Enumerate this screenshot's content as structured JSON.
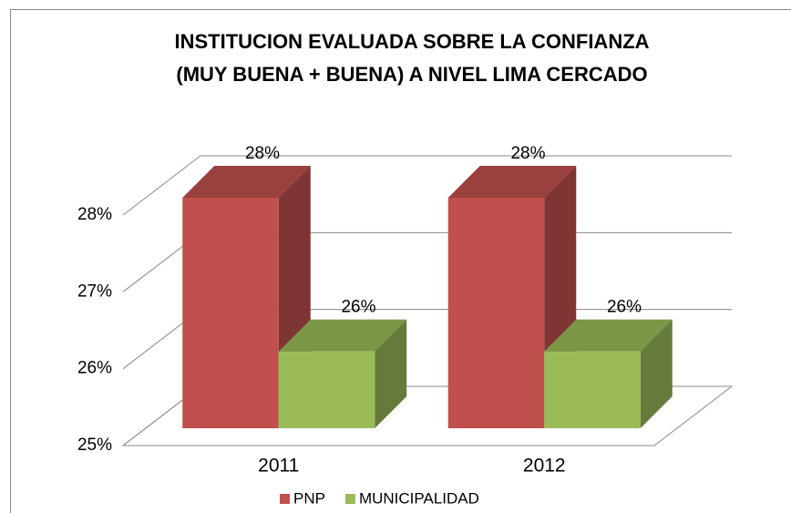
{
  "chart_data": {
    "type": "bar3d",
    "title": [
      "INSTITUCION EVALUADA SOBRE LA CONFIANZA",
      "(MUY BUENA + BUENA)  A NIVEL LIMA CERCADO"
    ],
    "categories": [
      "2011",
      "2012"
    ],
    "series": [
      {
        "name": "PNP",
        "color": "#c0504d",
        "values": [
          28,
          28
        ],
        "value_labels": [
          "28%",
          "28%"
        ]
      },
      {
        "name": "MUNICIPALIDAD",
        "color": "#9bbb59",
        "values": [
          26,
          26
        ],
        "value_labels": [
          "26%",
          "26%"
        ]
      }
    ],
    "ylim": [
      25,
      28.5
    ],
    "yticks": [
      {
        "value": 25,
        "label": "25%"
      },
      {
        "value": 26,
        "label": "26%"
      },
      {
        "value": 27,
        "label": "27%"
      },
      {
        "value": 28,
        "label": "28%"
      }
    ],
    "grid": true,
    "legend": "bottom"
  }
}
